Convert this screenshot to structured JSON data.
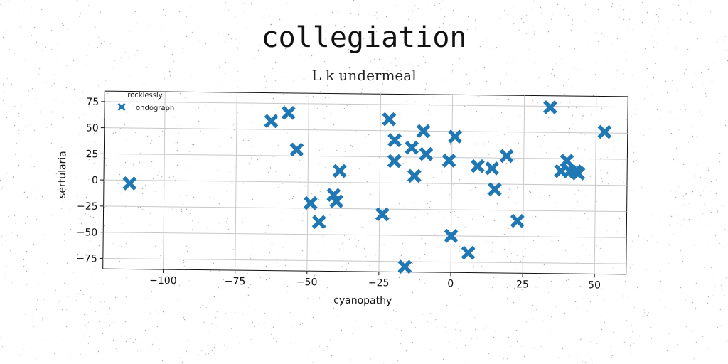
{
  "chart_data": {
    "type": "scatter",
    "title": "collegiation",
    "subtitle": "L k undermeal",
    "xlabel": "cyanopathy",
    "ylabel": "sertularia",
    "xlim": [
      -121,
      61
    ],
    "ylim": [
      -85,
      85
    ],
    "xticks": [
      -100,
      -75,
      -50,
      -25,
      0,
      25,
      50
    ],
    "yticks": [
      75,
      50,
      25,
      0,
      -25,
      -50,
      -75
    ],
    "grid": true,
    "legend": {
      "title": "recklessly",
      "position": "top-left"
    },
    "marker": "X",
    "color": "#1f77b4",
    "series": [
      {
        "name": "ondograph",
        "points": [
          [
            -112,
            -3
          ],
          [
            -63,
            58
          ],
          [
            -57,
            66
          ],
          [
            -54,
            31
          ],
          [
            -39,
            11
          ],
          [
            -49,
            -20
          ],
          [
            -41,
            -12
          ],
          [
            -40,
            -18
          ],
          [
            -46,
            -38
          ],
          [
            -24,
            -30
          ],
          [
            -22,
            61
          ],
          [
            -20,
            41
          ],
          [
            -20,
            21
          ],
          [
            -14,
            34
          ],
          [
            -13,
            7
          ],
          [
            -10,
            50
          ],
          [
            -9,
            28
          ],
          [
            -16,
            -80
          ],
          [
            -1,
            22
          ],
          [
            1,
            45
          ],
          [
            0,
            -50
          ],
          [
            6,
            -66
          ],
          [
            9,
            17
          ],
          [
            14,
            15
          ],
          [
            15,
            -5
          ],
          [
            19,
            27
          ],
          [
            23,
            -35
          ],
          [
            34,
            74
          ],
          [
            38,
            13
          ],
          [
            40,
            23
          ],
          [
            41,
            13
          ],
          [
            43,
            13
          ],
          [
            44,
            11
          ],
          [
            53,
            51
          ]
        ]
      }
    ]
  }
}
